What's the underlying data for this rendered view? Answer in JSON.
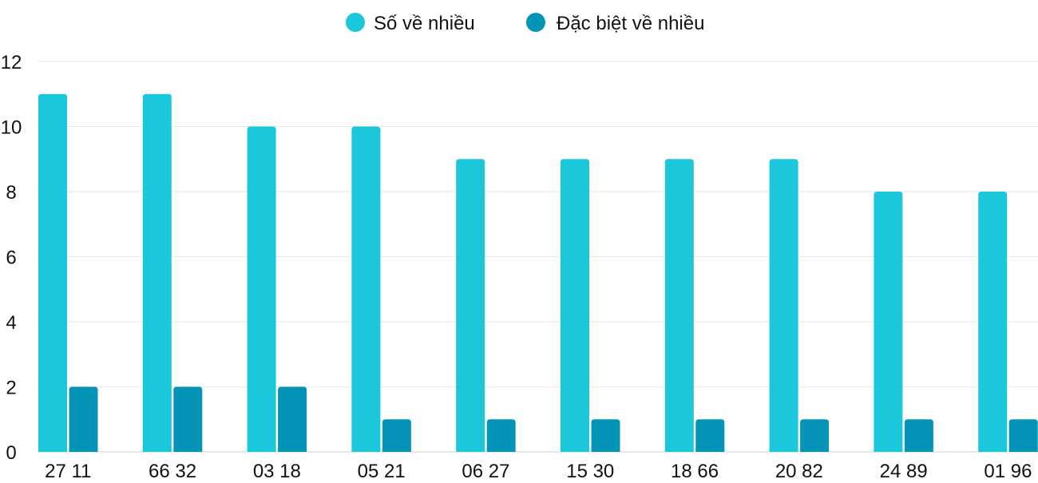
{
  "chart_data": {
    "type": "bar",
    "categories": [
      "27 11",
      "66 32",
      "03 18",
      "05 21",
      "06 27",
      "15 30",
      "18 66",
      "20 82",
      "24 89",
      "01 96"
    ],
    "series": [
      {
        "name": "Số về nhiều",
        "color": "#1bc8db",
        "values": [
          11,
          11,
          10,
          10,
          9,
          9,
          9,
          9,
          8,
          8
        ]
      },
      {
        "name": "Đặc biệt về nhiều",
        "color": "#0494b8",
        "values": [
          2,
          2,
          2,
          1,
          1,
          1,
          1,
          1,
          1,
          1
        ]
      }
    ],
    "yticks": [
      "0",
      "2",
      "4",
      "6",
      "8",
      "10",
      "12"
    ],
    "ylim": [
      0,
      12
    ],
    "grid": true,
    "legend_position": "top-center"
  }
}
